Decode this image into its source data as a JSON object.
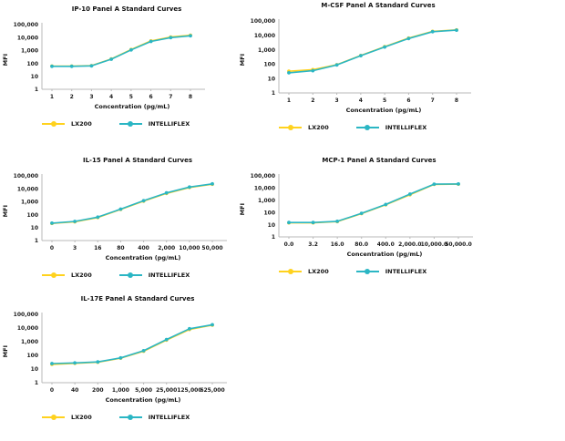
{
  "page": {
    "background": "#ffffff"
  },
  "legend": {
    "items": [
      {
        "label": "LX200",
        "color": "#FFD21E"
      },
      {
        "label": "INTELLIFLEX",
        "color": "#2BB6C4"
      }
    ]
  },
  "chart_data": [
    {
      "type": "line",
      "title": "IP-10 Panel A Standard Curves",
      "xlabel": "Concentration (pg/mL)",
      "ylabel": "MFI",
      "x_scale": "categorical",
      "y_scale": "log",
      "ylim": [
        1,
        100000
      ],
      "y_ticks": [
        "1",
        "10",
        "100",
        "1,000",
        "10,000",
        "100,000"
      ],
      "grid": false,
      "legend_position": "bottom",
      "categories": [
        "1",
        "2",
        "3",
        "4",
        "5",
        "6",
        "7",
        "8"
      ],
      "series": [
        {
          "name": "LX200",
          "values": [
            62,
            62,
            68,
            220,
            1200,
            5500,
            11000,
            15000
          ]
        },
        {
          "name": "INTELLIFLEX",
          "values": [
            60,
            60,
            65,
            210,
            1100,
            5000,
            9800,
            13500
          ]
        }
      ]
    },
    {
      "type": "line",
      "title": "M-CSF Panel A Standard Curves",
      "xlabel": "Concentration (pg/mL)",
      "ylabel": "MFI",
      "x_scale": "categorical",
      "y_scale": "log",
      "ylim": [
        1,
        100000
      ],
      "y_ticks": [
        "1",
        "10",
        "100",
        "1,000",
        "10,000",
        "100,000"
      ],
      "grid": false,
      "legend_position": "bottom",
      "categories": [
        "1",
        "2",
        "3",
        "4",
        "5",
        "6",
        "7",
        "8"
      ],
      "series": [
        {
          "name": "LX200",
          "values": [
            32,
            42,
            92,
            400,
            1650,
            6500,
            19000,
            24000
          ]
        },
        {
          "name": "INTELLIFLEX",
          "values": [
            25,
            35,
            88,
            390,
            1550,
            6000,
            18000,
            23000
          ]
        }
      ]
    },
    {
      "type": "line",
      "title": "IL-15 Panel A Standard Curves",
      "xlabel": "Concentration (pg/mL)",
      "ylabel": "MFI",
      "x_scale": "categorical",
      "y_scale": "log",
      "ylim": [
        1,
        100000
      ],
      "y_ticks": [
        "1",
        "10",
        "100",
        "1,000",
        "10,000",
        "100,000"
      ],
      "grid": false,
      "legend_position": "bottom",
      "categories": [
        "0",
        "3",
        "16",
        "80",
        "400",
        "2,000",
        "10,000",
        "50,000"
      ],
      "series": [
        {
          "name": "LX200",
          "values": [
            21,
            28,
            60,
            250,
            1100,
            4400,
            12500,
            22500
          ]
        },
        {
          "name": "INTELLIFLEX",
          "values": [
            22,
            30,
            65,
            270,
            1200,
            4800,
            13500,
            24000
          ]
        }
      ]
    },
    {
      "type": "line",
      "title": "MCP-1 Panel A Standard Curves",
      "xlabel": "Concentration (pg/mL)",
      "ylabel": "MFI",
      "x_scale": "categorical",
      "y_scale": "log",
      "ylim": [
        1,
        100000
      ],
      "y_ticks": [
        "1",
        "10",
        "100",
        "1,000",
        "10,000",
        "100,000"
      ],
      "grid": false,
      "legend_position": "bottom",
      "categories": [
        "0.0",
        "3.2",
        "16.0",
        "80.0",
        "400.0",
        "2,000.0",
        "10,000.0",
        "50,000.0"
      ],
      "series": [
        {
          "name": "LX200",
          "values": [
            14,
            14,
            18,
            80,
            420,
            2800,
            20000,
            21000
          ]
        },
        {
          "name": "INTELLIFLEX",
          "values": [
            15,
            15,
            19,
            85,
            450,
            3200,
            21000,
            21500
          ]
        }
      ]
    },
    {
      "type": "line",
      "title": "IL-17E Panel A Standard Curves",
      "xlabel": "Concentration (pg/mL)",
      "ylabel": "MFI",
      "x_scale": "categorical",
      "y_scale": "log",
      "ylim": [
        1,
        100000
      ],
      "y_ticks": [
        "1",
        "10",
        "100",
        "1,000",
        "10,000",
        "100,000"
      ],
      "grid": false,
      "legend_position": "bottom",
      "categories": [
        "0",
        "40",
        "200",
        "1,000",
        "5,000",
        "25,000",
        "125,000",
        "625,000"
      ],
      "series": [
        {
          "name": "LX200",
          "values": [
            22,
            26,
            31,
            62,
            200,
            1300,
            7800,
            16000
          ]
        },
        {
          "name": "INTELLIFLEX",
          "values": [
            25,
            28,
            33,
            65,
            220,
            1450,
            8800,
            17500
          ]
        }
      ]
    }
  ]
}
